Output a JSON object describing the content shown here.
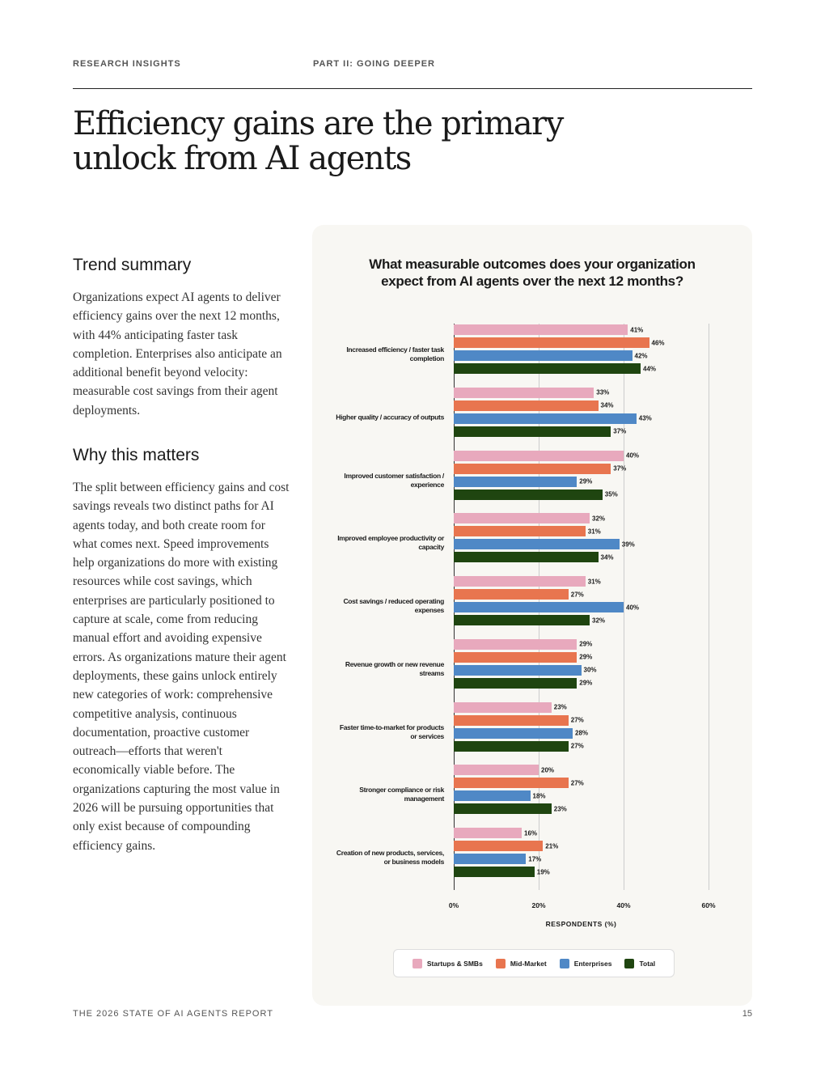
{
  "header": {
    "section": "RESEARCH INSIGHTS",
    "part": "PART II: GOING DEEPER"
  },
  "title": "Efficiency gains are the primary unlock from AI agents",
  "sections": [
    {
      "heading": "Trend summary",
      "text": "Organizations expect AI agents to deliver efficiency gains over the next 12 months, with 44% anticipating faster task completion. Enterprises also anticipate an additional benefit beyond velocity: measurable cost savings from their agent deployments."
    },
    {
      "heading": "Why this matters",
      "text": "The split between efficiency gains and cost savings reveals two distinct paths for AI agents today, and both create room for what comes next. Speed improvements help organizations do more with existing resources while cost savings, which enterprises are particularly positioned to capture at scale, come from reducing manual effort and avoiding expensive errors. As organizations mature their agent deployments, these gains unlock entirely new categories of work: comprehensive competitive analysis, continuous documentation, proactive customer outreach—efforts that weren't economically viable before. The organizations capturing the most value in 2026 will be pursuing opportunities that only exist because of compounding efficiency gains."
    }
  ],
  "chart_data": {
    "type": "bar",
    "orientation": "horizontal",
    "title": "What measurable outcomes does your organization expect from AI agents over the next 12 months?",
    "categories": [
      "Increased efficiency / faster task completion",
      "Higher quality / accuracy of outputs",
      "Improved customer satisfaction / experience",
      "Improved employee productivity or capacity",
      "Cost savings / reduced operating expenses",
      "Revenue growth or new revenue streams",
      "Faster time-to-market for products or services",
      "Stronger compliance or risk management",
      "Creation of new products, services, or business models"
    ],
    "series": [
      {
        "name": "Startups & SMBs",
        "color": "#e8a9bd",
        "values": [
          41,
          33,
          40,
          32,
          31,
          29,
          23,
          20,
          16
        ],
        "value_labels": [
          "41%",
          "33%",
          "40%",
          "32%",
          "31%",
          "29%",
          "23%",
          "20%",
          "16%"
        ]
      },
      {
        "name": "Mid-Market",
        "color": "#e8754f",
        "values": [
          46,
          34,
          37,
          31,
          27,
          29,
          27,
          27,
          21
        ],
        "value_labels": [
          "46%",
          "34%",
          "37%",
          "31%",
          "27%",
          "29%",
          "27%",
          "27%",
          "21%"
        ]
      },
      {
        "name": "Enterprises",
        "color": "#4f88c6",
        "values": [
          42,
          43,
          29,
          39,
          40,
          30,
          28,
          18,
          17
        ],
        "value_labels": [
          "42%",
          "43%",
          "29%",
          "39%",
          "40%",
          "30%",
          "28%",
          "18%",
          "17%"
        ]
      },
      {
        "name": "Total",
        "color": "#1f4510",
        "values": [
          44,
          37,
          35,
          34,
          32,
          29,
          27,
          23,
          19
        ],
        "value_labels": [
          "44%",
          "37%",
          "35%",
          "34%",
          "32%",
          "29%",
          "27%",
          "23%",
          "19%"
        ]
      }
    ],
    "xlim": [
      0,
      60
    ],
    "xticks": [
      {
        "value": 0,
        "label": "0%"
      },
      {
        "value": 20,
        "label": "20%"
      },
      {
        "value": 40,
        "label": "40%"
      },
      {
        "value": 60,
        "label": "60%"
      }
    ],
    "xlabel": "RESPONDENTS (%)",
    "grid": true,
    "legend": "bottom"
  },
  "footer": {
    "report": "THE 2026 STATE OF AI AGENTS REPORT",
    "page": "15"
  }
}
